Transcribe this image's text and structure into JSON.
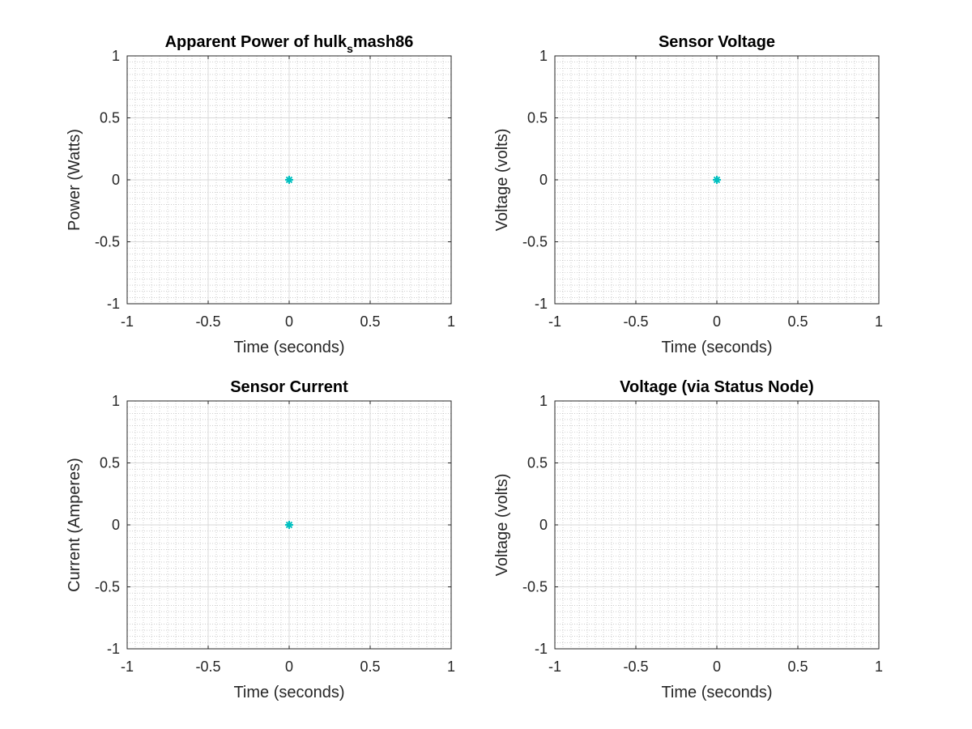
{
  "figure": {
    "background": "#ffffff"
  },
  "chart_data": [
    {
      "type": "scatter",
      "title": "Apparent Power of hulk",
      "title_subscript": "s",
      "title_suffix": "mash86",
      "xlabel": "Time (seconds)",
      "ylabel": "Power (Watts)",
      "xlim": [
        -1,
        1
      ],
      "ylim": [
        -1,
        1
      ],
      "x_ticks": [
        "-1",
        "-0.5",
        "0",
        "0.5",
        "1"
      ],
      "y_ticks": [
        "-1",
        "-0.5",
        "0",
        "0.5",
        "1"
      ],
      "grid": true,
      "minor_grid": true,
      "legend": "none",
      "series": [
        {
          "marker": "*",
          "color": "#00bfbf",
          "points": [
            {
              "x": 0,
              "y": 0
            }
          ]
        }
      ]
    },
    {
      "type": "scatter",
      "title": "Sensor Voltage",
      "xlabel": "Time (seconds)",
      "ylabel": "Voltage (volts)",
      "xlim": [
        -1,
        1
      ],
      "ylim": [
        -1,
        1
      ],
      "x_ticks": [
        "-1",
        "-0.5",
        "0",
        "0.5",
        "1"
      ],
      "y_ticks": [
        "-1",
        "-0.5",
        "0",
        "0.5",
        "1"
      ],
      "grid": true,
      "minor_grid": true,
      "legend": "none",
      "series": [
        {
          "marker": "*",
          "color": "#00bfbf",
          "points": [
            {
              "x": 0,
              "y": 0
            }
          ]
        }
      ]
    },
    {
      "type": "scatter",
      "title": "Sensor Current",
      "xlabel": "Time (seconds)",
      "ylabel": "Current (Amperes)",
      "xlim": [
        -1,
        1
      ],
      "ylim": [
        -1,
        1
      ],
      "x_ticks": [
        "-1",
        "-0.5",
        "0",
        "0.5",
        "1"
      ],
      "y_ticks": [
        "-1",
        "-0.5",
        "0",
        "0.5",
        "1"
      ],
      "grid": true,
      "minor_grid": true,
      "legend": "none",
      "series": [
        {
          "marker": "*",
          "color": "#00bfbf",
          "points": [
            {
              "x": 0,
              "y": 0
            }
          ]
        }
      ]
    },
    {
      "type": "scatter",
      "title": "Voltage (via Status Node)",
      "xlabel": "Time (seconds)",
      "ylabel": "Voltage (volts)",
      "xlim": [
        -1,
        1
      ],
      "ylim": [
        -1,
        1
      ],
      "x_ticks": [
        "-1",
        "-0.5",
        "0",
        "0.5",
        "1"
      ],
      "y_ticks": [
        "-1",
        "-0.5",
        "0",
        "0.5",
        "1"
      ],
      "grid": true,
      "minor_grid": true,
      "legend": "none",
      "series": []
    }
  ]
}
